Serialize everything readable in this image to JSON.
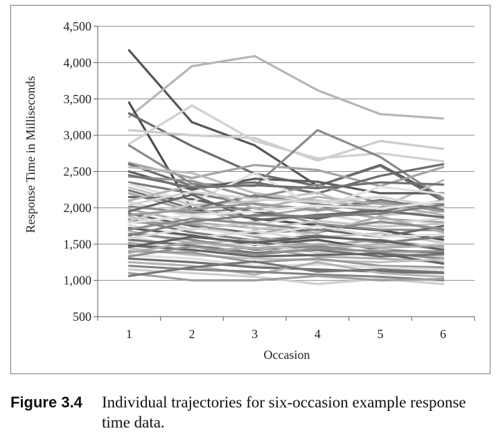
{
  "caption": {
    "label": "Figure 3.4",
    "text": "Individual trajectories for six-occasion example response time data."
  },
  "chart_data": {
    "type": "line",
    "xlabel": "Occasion",
    "ylabel": "Response Time in Milliseconds",
    "x": [
      1,
      2,
      3,
      4,
      5,
      6
    ],
    "x_tick_labels": [
      "1",
      "2",
      "3",
      "4",
      "5",
      "6"
    ],
    "ylim": [
      500,
      4500
    ],
    "y_ticks": [
      500,
      1000,
      1500,
      2000,
      2500,
      3000,
      3500,
      4000,
      4500
    ],
    "y_tick_labels": [
      "500",
      "1,000",
      "1,500",
      "2,000",
      "2,500",
      "3,000",
      "3,500",
      "4,000",
      "4,500"
    ],
    "grid": "horizontal",
    "legend": "none",
    "series": [
      {
        "values": [
          4170,
          3180,
          2860,
          2300,
          2590,
          2130
        ],
        "color": "#555555"
      },
      {
        "values": [
          3250,
          3950,
          4090,
          3620,
          3290,
          3230
        ],
        "color": "#b5b5b5"
      },
      {
        "values": [
          3450,
          1980,
          1850,
          1760,
          1690,
          1560
        ],
        "color": "#4d4d4d"
      },
      {
        "values": [
          3300,
          2850,
          2470,
          2300,
          2580,
          2090
        ],
        "color": "#6b6b6b"
      },
      {
        "values": [
          3070,
          3000,
          2960,
          2650,
          2920,
          2810
        ],
        "color": "#cccccc"
      },
      {
        "values": [
          2880,
          3410,
          2920,
          2680,
          2750,
          2640
        ],
        "color": "#d0d0d0"
      },
      {
        "values": [
          2860,
          2330,
          2300,
          3070,
          2700,
          2130
        ],
        "color": "#8a8a8a"
      },
      {
        "values": [
          2620,
          2410,
          2590,
          2520,
          2300,
          2560
        ],
        "color": "#a3a3a3"
      },
      {
        "values": [
          2600,
          2300,
          2350,
          2200,
          2440,
          2600
        ],
        "color": "#6e6e6e"
      },
      {
        "values": [
          2560,
          2480,
          2200,
          2100,
          2000,
          2380
        ],
        "color": "#bdbdbd"
      },
      {
        "values": [
          2500,
          2250,
          2400,
          2360,
          2200,
          2200
        ],
        "color": "#5c5c5c"
      },
      {
        "values": [
          2430,
          2370,
          2140,
          2320,
          2060,
          2050
        ],
        "color": "#949494"
      },
      {
        "values": [
          2350,
          2200,
          2050,
          1980,
          2110,
          1970
        ],
        "color": "#7a7a7a"
      },
      {
        "values": [
          2280,
          2040,
          2090,
          2210,
          1900,
          1950
        ],
        "color": "#c4c4c4"
      },
      {
        "values": [
          2200,
          1950,
          1880,
          2000,
          1850,
          1800
        ],
        "color": "#a8a8a8"
      },
      {
        "values": [
          2150,
          2120,
          1940,
          1850,
          2000,
          2020
        ],
        "color": "#626262"
      },
      {
        "values": [
          2080,
          1880,
          1760,
          1920,
          1780,
          1850
        ],
        "color": "#d6d6d6"
      },
      {
        "values": [
          2020,
          1930,
          2000,
          1780,
          1700,
          1690
        ],
        "color": "#8f8f8f"
      },
      {
        "values": [
          1980,
          1800,
          1720,
          1650,
          1880,
          1660
        ],
        "color": "#b0b0b0"
      },
      {
        "values": [
          1920,
          1750,
          1650,
          1700,
          1600,
          1750
        ],
        "color": "#6a6a6a"
      },
      {
        "values": [
          1880,
          1700,
          1810,
          1590,
          1650,
          1520
        ],
        "color": "#c8c8c8"
      },
      {
        "values": [
          1840,
          1660,
          1550,
          1620,
          1520,
          1600
        ],
        "color": "#7f7f7f"
      },
      {
        "values": [
          1800,
          1780,
          1600,
          1480,
          1560,
          1450
        ],
        "color": "#9e9e9e"
      },
      {
        "values": [
          1760,
          1580,
          1680,
          1540,
          1470,
          1500
        ],
        "color": "#dadada"
      },
      {
        "values": [
          1720,
          1620,
          1490,
          1560,
          1420,
          1380
        ],
        "color": "#5a5a5a"
      },
      {
        "values": [
          1680,
          1510,
          1560,
          1430,
          1500,
          1440
        ],
        "color": "#b8b8b8"
      },
      {
        "values": [
          1640,
          1560,
          1420,
          1470,
          1380,
          1300
        ],
        "color": "#888888"
      },
      {
        "values": [
          1600,
          1450,
          1500,
          1380,
          1420,
          1330
        ],
        "color": "#d2d2d2"
      },
      {
        "values": [
          1560,
          1480,
          1380,
          1420,
          1330,
          1360
        ],
        "color": "#737373"
      },
      {
        "values": [
          1520,
          1400,
          1450,
          1330,
          1300,
          1250
        ],
        "color": "#ababab"
      },
      {
        "values": [
          1480,
          1420,
          1330,
          1350,
          1370,
          1230
        ],
        "color": "#656565"
      },
      {
        "values": [
          1440,
          1350,
          1300,
          1280,
          1250,
          1290
        ],
        "color": "#c0c0c0"
      },
      {
        "values": [
          1400,
          1380,
          1250,
          1300,
          1200,
          1180
        ],
        "color": "#999999"
      },
      {
        "values": [
          1350,
          1300,
          1200,
          1220,
          1180,
          1150
        ],
        "color": "#dddddd"
      },
      {
        "values": [
          1300,
          1250,
          1180,
          1150,
          1120,
          1100
        ],
        "color": "#6f6f6f"
      },
      {
        "values": [
          1250,
          1200,
          1080,
          1250,
          1100,
          1050
        ],
        "color": "#b3b3b3"
      },
      {
        "values": [
          1200,
          1150,
          1120,
          1080,
          1050,
          1000
        ],
        "color": "#858585"
      },
      {
        "values": [
          1150,
          1100,
          1050,
          950,
          1020,
          950
        ],
        "color": "#cfcfcf"
      },
      {
        "values": [
          1100,
          1000,
          1000,
          1060,
          1000,
          1020
        ],
        "color": "#a0a0a0"
      },
      {
        "values": [
          1060,
          1180,
          1260,
          1120,
          1150,
          1110
        ],
        "color": "#767676"
      },
      {
        "values": [
          2330,
          2080,
          2480,
          2000,
          2290,
          2190
        ],
        "color": "#e0e0e0"
      },
      {
        "values": [
          2240,
          1990,
          2170,
          2050,
          1950,
          2100
        ],
        "color": "#7c7c7c"
      },
      {
        "values": [
          2100,
          2310,
          1990,
          2150,
          2050,
          1900
        ],
        "color": "#b6b6b6"
      },
      {
        "values": [
          1950,
          2180,
          1830,
          1900,
          1960,
          1870
        ],
        "color": "#696969"
      },
      {
        "values": [
          1820,
          2050,
          1700,
          1820,
          1740,
          1780
        ],
        "color": "#c7c7c7"
      },
      {
        "values": [
          1700,
          1850,
          1780,
          1690,
          1810,
          1710
        ],
        "color": "#8c8c8c"
      },
      {
        "values": [
          1580,
          1720,
          1620,
          1750,
          1600,
          1630
        ],
        "color": "#dcdcdc"
      },
      {
        "values": [
          1460,
          1600,
          1520,
          1600,
          1550,
          1420
        ],
        "color": "#606060"
      },
      {
        "values": [
          1380,
          1530,
          1440,
          1500,
          1450,
          1480
        ],
        "color": "#ababab"
      },
      {
        "values": [
          1330,
          1470,
          1350,
          1440,
          1400,
          1400
        ],
        "color": "#919191"
      },
      {
        "values": [
          2450,
          2280,
          2310,
          2270,
          2350,
          2320
        ],
        "color": "#717171"
      },
      {
        "values": [
          2040,
          2220,
          2120,
          2080,
          2150,
          2010
        ],
        "color": "#d4d4d4"
      },
      {
        "values": [
          1900,
          1980,
          2060,
          1960,
          2080,
          1950
        ],
        "color": "#9a9a9a"
      },
      {
        "values": [
          1790,
          1900,
          1950,
          2030,
          1990,
          2090
        ],
        "color": "#e3e3e3"
      },
      {
        "values": [
          1620,
          1810,
          1900,
          1880,
          1920,
          2040
        ],
        "color": "#7e7e7e"
      }
    ]
  }
}
